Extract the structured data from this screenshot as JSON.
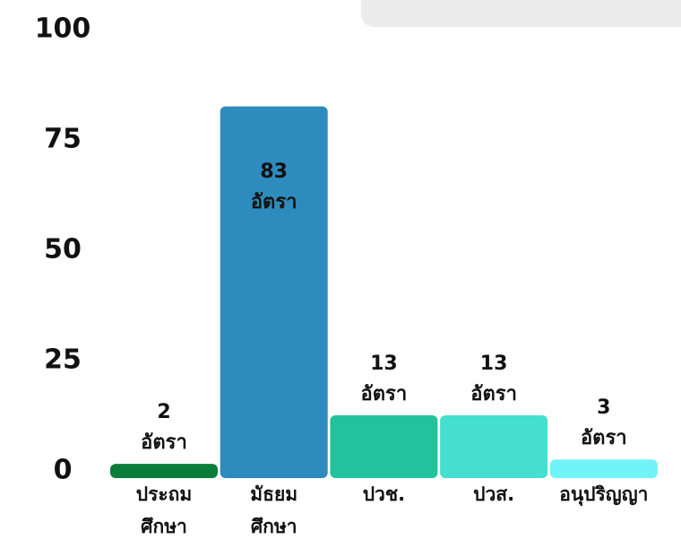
{
  "chart_data": {
    "type": "bar",
    "categories": [
      "ประถม\nศึกษา",
      "มัธยม\nศึกษา",
      "ปวช.",
      "ปวส.",
      "อนุปริญญา"
    ],
    "values": [
      2,
      83,
      13,
      13,
      3
    ],
    "value_labels": [
      "2\nอัตรา",
      "83\nอัตรา",
      "13\nอัตรา",
      "13\nอัตรา",
      "3\nอัตรา"
    ],
    "colors": [
      "#0b7d3b",
      "#2e8bbd",
      "#22c29d",
      "#45dfcf",
      "#70f4f8"
    ],
    "ylim": [
      0,
      100
    ],
    "yticks": [
      0,
      25,
      50,
      75,
      100
    ],
    "grid": false
  }
}
